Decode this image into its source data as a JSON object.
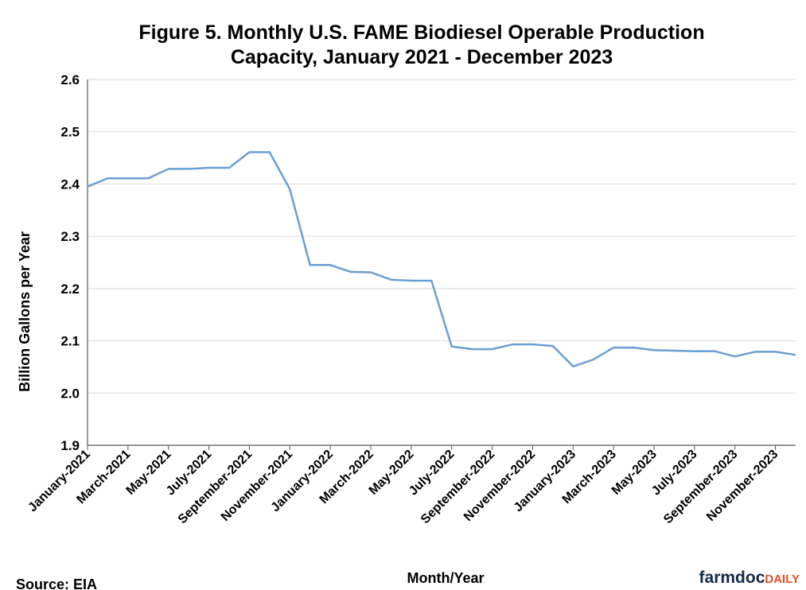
{
  "chart_data": {
    "type": "line",
    "title": "Figure 5. Monthly U.S. FAME Biodiesel Operable Production Capacity, January 2021 - December 2023",
    "x_label": "Month/Year",
    "y_label": "Billion Gallons per Year",
    "source": "Source: EIA",
    "logo": [
      "farmdoc",
      "DAILY"
    ],
    "categories": [
      "January-2021",
      null,
      "March-2021",
      null,
      "May-2021",
      null,
      "July-2021",
      null,
      "September-2021",
      null,
      "November-2021",
      null,
      "January-2022",
      null,
      "March-2022",
      null,
      "May-2022",
      null,
      "July-2022",
      null,
      "September-2022",
      null,
      "November-2022",
      null,
      "January-2023",
      null,
      "March-2023",
      null,
      "May-2023",
      null,
      "July-2023",
      null,
      "September-2023",
      null,
      "November-2023",
      null
    ],
    "series": [
      {
        "name": "FAME Biodiesel Operable Production Capacity",
        "color": "#6a9fd4",
        "values": [
          2.395,
          2.411,
          2.411,
          2.411,
          2.429,
          2.429,
          2.431,
          2.431,
          2.461,
          2.461,
          2.39,
          2.245,
          2.245,
          2.232,
          2.231,
          2.217,
          2.215,
          2.215,
          2.089,
          2.084,
          2.084,
          2.093,
          2.093,
          2.09,
          2.051,
          2.064,
          2.087,
          2.087,
          2.082,
          2.081,
          2.08,
          2.08,
          2.07,
          2.079,
          2.079,
          2.073
        ]
      }
    ],
    "ylim": [
      1.9,
      2.6
    ],
    "yticks": [
      1.9,
      {
        "value": 2,
        "label": "2.0"
      },
      2.1,
      2.2,
      2.3,
      2.4,
      2.5,
      2.6
    ],
    "grid": true
  }
}
